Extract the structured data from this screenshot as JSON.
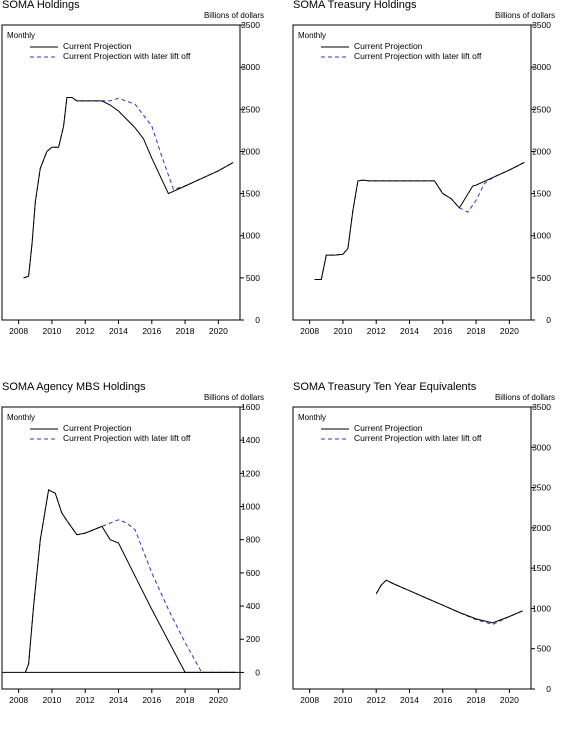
{
  "chart_data": [
    {
      "type": "line",
      "title": "SOMA Holdings",
      "units": "Billions of dollars",
      "frequency": "Monthly",
      "ylim": [
        0,
        3500
      ],
      "yticks": [
        0,
        500,
        1000,
        1500,
        2000,
        2500,
        3000,
        3500
      ],
      "xlim": [
        2007,
        2021.3
      ],
      "xticks": [
        2008,
        2010,
        2012,
        2014,
        2016,
        2018,
        2020
      ],
      "legend": "top-left",
      "series": [
        {
          "name": "Current Projection",
          "color": "#000000",
          "dash": "solid",
          "x": [
            2008.3,
            2008.6,
            2008.8,
            2009.0,
            2009.3,
            2009.7,
            2010.0,
            2010.4,
            2010.7,
            2010.9,
            2011.2,
            2011.5,
            2012.0,
            2013.0,
            2013.5,
            2014.0,
            2015.0,
            2015.5,
            2016.0,
            2017.0,
            2018.0,
            2019.0,
            2020.0,
            2020.9
          ],
          "y": [
            500,
            520,
            900,
            1400,
            1800,
            2000,
            2050,
            2050,
            2300,
            2640,
            2640,
            2600,
            2600,
            2600,
            2550,
            2480,
            2280,
            2150,
            1920,
            1500,
            1590,
            1680,
            1770,
            1870
          ]
        },
        {
          "name": "Current Projection with later lift off",
          "color": "#3333cc",
          "dash": "dashed",
          "x": [
            2008.3,
            2008.6,
            2008.8,
            2009.0,
            2009.3,
            2009.7,
            2010.0,
            2010.4,
            2010.7,
            2010.9,
            2011.2,
            2011.5,
            2012.0,
            2013.0,
            2013.5,
            2014.0,
            2015.0,
            2016.0,
            2016.5,
            2017.3,
            2018.0,
            2019.0,
            2020.0,
            2020.9
          ],
          "y": [
            500,
            520,
            900,
            1400,
            1800,
            2000,
            2050,
            2050,
            2300,
            2640,
            2640,
            2600,
            2600,
            2600,
            2600,
            2630,
            2560,
            2300,
            2000,
            1550,
            1590,
            1680,
            1770,
            1870
          ]
        }
      ]
    },
    {
      "type": "line",
      "title": "SOMA Treasury Holdings",
      "units": "Billions of dollars",
      "frequency": "Monthly",
      "ylim": [
        0,
        3500
      ],
      "yticks": [
        0,
        500,
        1000,
        1500,
        2000,
        2500,
        3000,
        3500
      ],
      "xlim": [
        2007,
        2021.3
      ],
      "xticks": [
        2008,
        2010,
        2012,
        2014,
        2016,
        2018,
        2020
      ],
      "legend": "top-left",
      "series": [
        {
          "name": "Current Projection",
          "color": "#000000",
          "dash": "solid",
          "x": [
            2008.3,
            2008.7,
            2009.0,
            2009.5,
            2010.0,
            2010.3,
            2010.6,
            2010.9,
            2011.2,
            2011.6,
            2012.0,
            2013.0,
            2014.0,
            2015.0,
            2015.5,
            2016.0,
            2016.5,
            2017.0,
            2017.4,
            2017.8,
            2018.0,
            2019.0,
            2020.0,
            2020.9
          ],
          "y": [
            480,
            480,
            770,
            770,
            780,
            850,
            1300,
            1650,
            1660,
            1650,
            1650,
            1650,
            1650,
            1650,
            1650,
            1500,
            1440,
            1330,
            1460,
            1590,
            1600,
            1690,
            1780,
            1870
          ]
        },
        {
          "name": "Current Projection with later lift off",
          "color": "#3333cc",
          "dash": "dashed",
          "x": [
            2008.3,
            2008.7,
            2009.0,
            2009.5,
            2010.0,
            2010.3,
            2010.6,
            2010.9,
            2011.2,
            2011.6,
            2012.0,
            2013.0,
            2014.0,
            2015.0,
            2015.5,
            2016.0,
            2016.5,
            2017.0,
            2017.5,
            2018.0,
            2018.5,
            2019.0,
            2020.0,
            2020.9
          ],
          "y": [
            480,
            480,
            770,
            770,
            780,
            850,
            1300,
            1650,
            1660,
            1650,
            1650,
            1650,
            1650,
            1650,
            1650,
            1500,
            1440,
            1330,
            1280,
            1420,
            1620,
            1690,
            1780,
            1870
          ]
        }
      ]
    },
    {
      "type": "line",
      "title": "SOMA Agency MBS Holdings",
      "units": "Billions of dollars",
      "frequency": "Monthly",
      "ylim": [
        -100,
        1600
      ],
      "yticks": [
        0,
        200,
        400,
        600,
        800,
        1000,
        1200,
        1400,
        1600
      ],
      "xlim": [
        2007,
        2021.3
      ],
      "xticks": [
        2008,
        2010,
        2012,
        2014,
        2016,
        2018,
        2020
      ],
      "legend": "top-left",
      "zero_line": true,
      "series": [
        {
          "name": "Current Projection",
          "color": "#000000",
          "dash": "solid",
          "x": [
            2008.4,
            2008.6,
            2008.9,
            2009.3,
            2009.8,
            2010.2,
            2010.6,
            2011.0,
            2011.5,
            2012.0,
            2013.0,
            2013.5,
            2014.0,
            2015.0,
            2016.0,
            2017.0,
            2018.0,
            2019.0,
            2020.0,
            2021.0
          ],
          "y": [
            0,
            50,
            400,
            800,
            1100,
            1080,
            960,
            900,
            830,
            840,
            880,
            800,
            780,
            580,
            380,
            190,
            0,
            0,
            0,
            0
          ]
        },
        {
          "name": "Current Projection with later lift off",
          "color": "#3333cc",
          "dash": "dashed",
          "x": [
            2008.4,
            2008.6,
            2008.9,
            2009.3,
            2009.8,
            2010.2,
            2010.6,
            2011.0,
            2011.5,
            2012.0,
            2013.0,
            2013.5,
            2014.0,
            2014.5,
            2015.0,
            2016.0,
            2017.0,
            2018.0,
            2019.0,
            2020.0,
            2021.0
          ],
          "y": [
            0,
            50,
            400,
            800,
            1100,
            1080,
            960,
            900,
            830,
            840,
            880,
            900,
            920,
            900,
            860,
            600,
            380,
            180,
            0,
            0,
            0
          ]
        }
      ]
    },
    {
      "type": "line",
      "title": "SOMA Treasury Ten Year Equivalents",
      "units": "Billions of dollars",
      "frequency": "Monthly",
      "ylim": [
        0,
        3500
      ],
      "yticks": [
        0,
        500,
        1000,
        1500,
        2000,
        2500,
        3000,
        3500
      ],
      "ytick_labels": [
        "0",
        "500",
        "1000",
        "1500",
        "2000",
        "2500",
        "3000",
        "3500"
      ],
      "xlim": [
        2007,
        2021.3
      ],
      "xticks": [
        2008,
        2010,
        2012,
        2014,
        2016,
        2018,
        2020
      ],
      "legend": "top-left",
      "series": [
        {
          "name": "Current Projection",
          "color": "#000000",
          "dash": "solid",
          "x": [
            2012.0,
            2012.3,
            2012.6,
            2013.0,
            2014.0,
            2015.0,
            2016.0,
            2017.0,
            2018.0,
            2019.0,
            2020.0,
            2020.8
          ],
          "y": [
            1180,
            1290,
            1350,
            1310,
            1220,
            1130,
            1040,
            950,
            870,
            820,
            900,
            970
          ]
        },
        {
          "name": "Current Projection with later lift off",
          "color": "#3333cc",
          "dash": "dashed",
          "x": [
            2012.0,
            2012.3,
            2012.6,
            2013.0,
            2014.0,
            2015.0,
            2016.0,
            2017.0,
            2018.0,
            2019.0,
            2020.0,
            2020.8
          ],
          "y": [
            1180,
            1290,
            1350,
            1310,
            1220,
            1130,
            1040,
            950,
            860,
            800,
            900,
            970
          ]
        }
      ]
    }
  ]
}
